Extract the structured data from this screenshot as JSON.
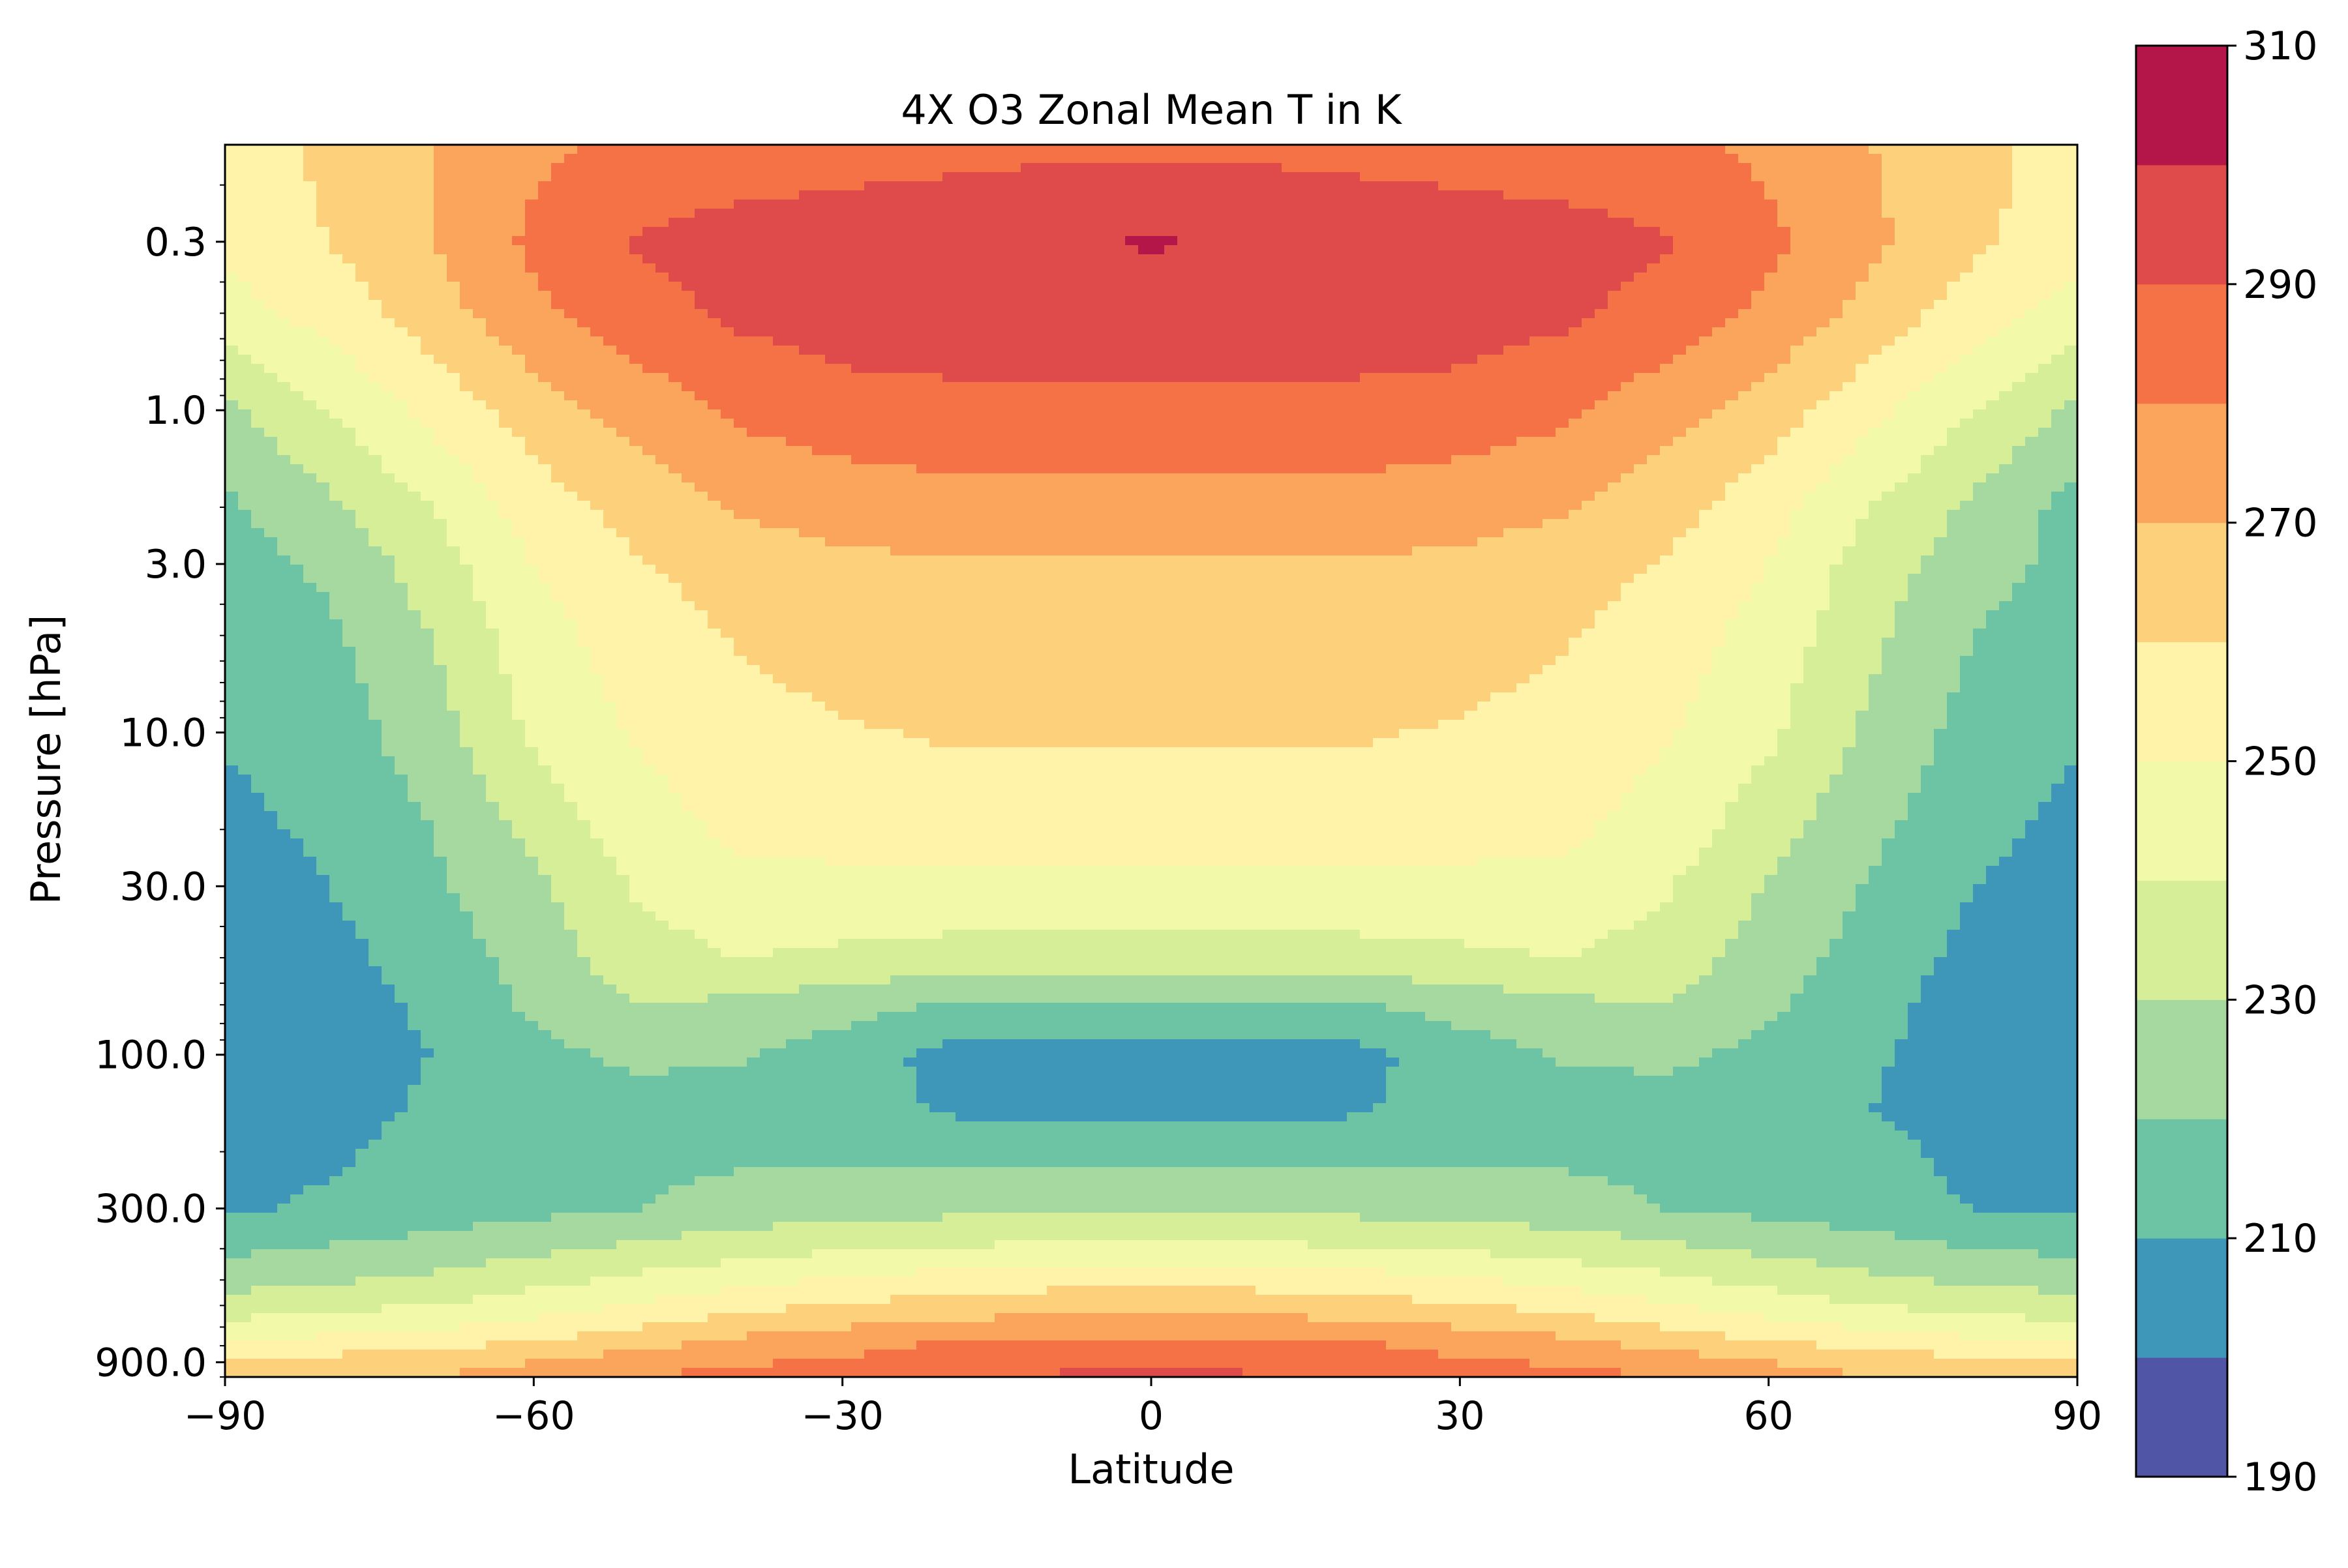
{
  "chart_data": {
    "type": "heatmap",
    "subtype": "filled-contour",
    "title": "4X O3 Zonal Mean T in K",
    "xlabel": "Latitude",
    "ylabel": "Pressure [hPa]",
    "xlim": [
      -90,
      90
    ],
    "ylim": [
      1000,
      0.15
    ],
    "yscale": "log",
    "yaxis_inverted": true,
    "grid": false,
    "x_ticks": [
      -90,
      -60,
      -30,
      0,
      30,
      60,
      90
    ],
    "x_tick_labels": [
      "−90",
      "−60",
      "−30",
      "0",
      "30",
      "60",
      "90"
    ],
    "y_ticks": [
      0.3,
      1.0,
      3.0,
      10.0,
      30.0,
      100.0,
      300.0,
      900.0
    ],
    "y_tick_labels": [
      "0.3",
      "1.0",
      "3.0",
      "10.0",
      "30.0",
      "100.0",
      "300.0",
      "900.0"
    ],
    "colorbar": {
      "placement": "right",
      "levels": [
        190,
        200,
        210,
        220,
        230,
        240,
        250,
        260,
        270,
        280,
        290,
        300,
        310
      ],
      "tick_values": [
        190,
        210,
        230,
        250,
        270,
        290,
        310
      ],
      "tick_labels": [
        "190",
        "210",
        "230",
        "250",
        "270",
        "290",
        "310"
      ],
      "colors": [
        "#5155a5",
        "#3e96b8",
        "#6cc4a4",
        "#a5d99f",
        "#d7ee99",
        "#f2f9a9",
        "#fef3a9",
        "#fdd07c",
        "#fba55c",
        "#f47245",
        "#df4b4b",
        "#b5164a"
      ]
    },
    "field_description": "temperature [K] estimated from filled contour bands",
    "latitudes": [
      -90,
      -80,
      -70,
      -60,
      -50,
      -40,
      -30,
      -20,
      -10,
      0,
      10,
      20,
      30,
      40,
      50,
      60,
      70,
      80,
      90
    ],
    "pressures": [
      0.15,
      0.3,
      0.5,
      1.0,
      2.0,
      3.0,
      5.0,
      10.0,
      20.0,
      30.0,
      50.0,
      70.0,
      100.0,
      150.0,
      200.0,
      300.0,
      400.0,
      500.0,
      600.0,
      700.0,
      800.0,
      900.0,
      1000.0
    ],
    "temperature": [
      [
        255,
        262,
        270,
        278,
        282,
        284,
        286,
        287,
        288,
        288,
        288,
        287,
        286,
        284,
        282,
        278,
        270,
        263,
        256
      ],
      [
        252,
        260,
        270,
        282,
        291,
        294,
        295,
        296,
        298,
        301,
        298,
        296,
        295,
        294,
        291,
        282,
        272,
        262,
        254
      ],
      [
        246,
        254,
        265,
        278,
        286,
        292,
        295,
        296,
        296,
        296,
        296,
        296,
        295,
        292,
        286,
        278,
        266,
        255,
        245
      ],
      [
        228,
        240,
        253,
        265,
        274,
        282,
        286,
        287,
        288,
        288,
        288,
        287,
        286,
        282,
        274,
        265,
        253,
        240,
        228
      ],
      [
        218,
        228,
        240,
        255,
        264,
        271,
        274,
        276,
        276,
        276,
        276,
        276,
        274,
        271,
        264,
        254,
        240,
        228,
        216
      ],
      [
        215,
        222,
        235,
        250,
        259,
        265,
        268,
        269,
        269,
        269,
        269,
        269,
        268,
        265,
        259,
        250,
        235,
        224,
        217
      ],
      [
        212,
        218,
        230,
        246,
        255,
        261,
        265,
        266,
        266,
        266,
        266,
        266,
        265,
        261,
        255,
        246,
        232,
        220,
        213
      ],
      [
        211,
        215,
        225,
        242,
        251,
        256,
        259,
        261,
        261,
        261,
        261,
        261,
        259,
        256,
        251,
        242,
        228,
        216,
        211
      ],
      [
        207,
        212,
        220,
        233,
        246,
        252,
        253,
        253,
        253,
        253,
        253,
        253,
        253,
        252,
        246,
        234,
        222,
        213,
        207
      ],
      [
        204,
        210,
        218,
        228,
        241,
        247,
        248,
        248,
        248,
        248,
        248,
        248,
        248,
        247,
        241,
        229,
        219,
        210,
        205
      ],
      [
        203,
        207,
        214,
        224,
        236,
        240,
        238,
        236,
        235,
        235,
        235,
        236,
        238,
        240,
        236,
        225,
        216,
        207,
        203
      ],
      [
        202,
        205,
        212,
        222,
        230,
        228,
        224,
        219,
        218,
        218,
        218,
        219,
        224,
        228,
        230,
        222,
        213,
        205,
        202
      ],
      [
        203,
        205,
        210,
        217,
        222,
        221,
        215,
        207,
        205,
        205,
        205,
        207,
        215,
        221,
        222,
        217,
        211,
        206,
        203
      ],
      [
        204,
        205,
        212,
        214,
        216,
        216,
        214,
        209,
        206,
        206,
        206,
        209,
        214,
        216,
        216,
        214,
        210,
        205,
        204
      ],
      [
        205,
        208,
        215,
        216,
        217,
        218,
        218,
        218,
        218,
        218,
        218,
        218,
        218,
        218,
        217,
        216,
        213,
        207,
        205
      ],
      [
        208,
        212,
        214,
        217,
        220,
        224,
        226,
        227,
        228,
        228,
        228,
        227,
        226,
        224,
        220,
        217,
        214,
        210,
        208
      ],
      [
        218,
        221,
        224,
        228,
        232,
        236,
        239,
        241,
        242,
        242,
        242,
        241,
        239,
        236,
        232,
        228,
        224,
        220,
        218
      ],
      [
        226,
        229,
        232,
        237,
        242,
        247,
        251,
        254,
        256,
        256,
        256,
        254,
        251,
        247,
        242,
        237,
        232,
        228,
        226
      ],
      [
        234,
        237,
        240,
        245,
        251,
        257,
        261,
        264,
        266,
        266,
        266,
        264,
        261,
        257,
        251,
        245,
        240,
        236,
        234
      ],
      [
        243,
        246,
        249,
        254,
        260,
        266,
        270,
        273,
        275,
        275,
        275,
        273,
        270,
        266,
        260,
        254,
        249,
        245,
        243
      ],
      [
        252,
        255,
        258,
        262,
        268,
        274,
        278,
        281,
        283,
        283,
        283,
        281,
        278,
        274,
        268,
        262,
        258,
        254,
        252
      ],
      [
        262,
        264,
        266,
        270,
        275,
        279,
        281,
        283,
        285,
        286,
        285,
        283,
        281,
        279,
        275,
        270,
        266,
        263,
        262
      ],
      [
        266,
        268,
        270,
        274,
        279,
        284,
        287,
        290,
        292,
        294,
        292,
        290,
        287,
        284,
        279,
        274,
        270,
        267,
        266
      ]
    ]
  }
}
